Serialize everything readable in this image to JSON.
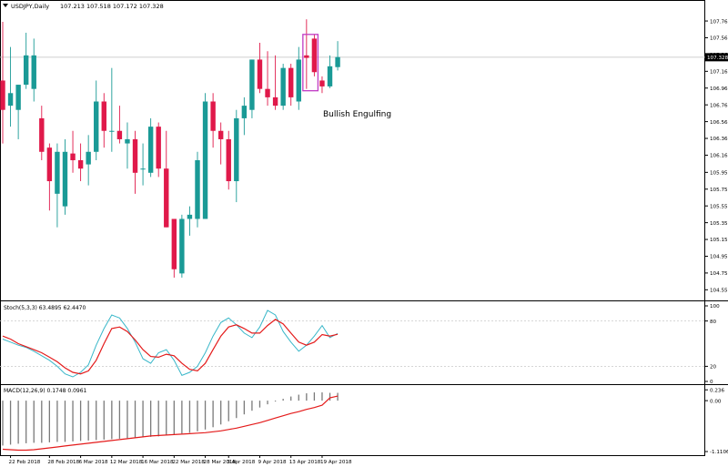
{
  "header": {
    "symbol_label": "USDJPY,Daily",
    "ohlc_label": "107.213 107.518 107.172 107.328"
  },
  "colors": {
    "bull": "#1a9a96",
    "bear": "#e0194a",
    "stoch_main": "#39b7c9",
    "stoch_signal": "#e41b1b",
    "macd_hist": "#7a7a7a",
    "macd_signal": "#e41b1b",
    "annotation_box": "#c13bc4",
    "price_line": "#bfbfbf",
    "current_price_bg": "#000000"
  },
  "annotation": {
    "label": "Bullish Engulfing",
    "start_index": 39,
    "end_index": 40
  },
  "current_price": {
    "value": 107.328,
    "label": "107.328"
  },
  "chart_data": [
    {
      "type": "candlestick",
      "name": "USDJPY,Daily",
      "ylim": [
        104.45,
        107.88
      ],
      "y_ticks": [
        107.76,
        107.56,
        107.36,
        107.16,
        106.96,
        106.76,
        106.56,
        106.36,
        106.16,
        105.955,
        105.755,
        105.555,
        105.355,
        105.155,
        104.955,
        104.755,
        104.555
      ],
      "y_tick_labels": [
        "107.760",
        "107.560",
        "107.360",
        "107.160",
        "106.960",
        "106.760",
        "106.560",
        "106.360",
        "106.160",
        "105.955",
        "105.755",
        "105.555",
        "105.355",
        "105.155",
        "104.955",
        "104.755",
        "104.555"
      ],
      "x_tick_labels": [
        {
          "index": 1,
          "label": "22 Feb 2018"
        },
        {
          "index": 6,
          "label": "28 Feb 2018"
        },
        {
          "index": 10,
          "label": "6 Mar 2018"
        },
        {
          "index": 14,
          "label": "12 Mar 2018"
        },
        {
          "index": 18,
          "label": "16 Mar 2018"
        },
        {
          "index": 22,
          "label": "22 Mar 2018"
        },
        {
          "index": 26,
          "label": "28 Mar 2018"
        },
        {
          "index": 29,
          "label": "3 Apr 2018"
        },
        {
          "index": 33,
          "label": "9 Apr 2018"
        },
        {
          "index": 37,
          "label": "13 Apr 2018"
        },
        {
          "index": 41,
          "label": "19 Apr 2018"
        }
      ],
      "ohlc": [
        [
          107.05,
          107.75,
          106.3,
          106.7
        ],
        [
          106.75,
          107.45,
          106.5,
          106.9
        ],
        [
          106.7,
          107.0,
          106.35,
          107.0
        ],
        [
          107.0,
          107.62,
          106.95,
          107.35
        ],
        [
          106.95,
          107.55,
          106.8,
          107.35
        ],
        [
          106.6,
          106.75,
          106.1,
          106.2
        ],
        [
          106.25,
          106.3,
          105.5,
          105.85
        ],
        [
          105.7,
          106.3,
          105.3,
          106.2
        ],
        [
          105.55,
          106.35,
          105.45,
          106.2
        ],
        [
          106.18,
          106.45,
          105.95,
          106.1
        ],
        [
          106.1,
          106.3,
          105.85,
          106.0
        ],
        [
          106.05,
          106.4,
          105.8,
          106.2
        ],
        [
          106.2,
          107.05,
          106.1,
          106.8
        ],
        [
          106.8,
          106.9,
          106.25,
          106.45
        ],
        [
          106.45,
          107.2,
          106.2,
          106.45
        ],
        [
          106.45,
          106.75,
          106.3,
          106.35
        ],
        [
          106.3,
          106.55,
          106.0,
          106.35
        ],
        [
          106.35,
          106.45,
          105.7,
          105.95
        ],
        [
          106.0,
          106.3,
          105.8,
          106.0
        ],
        [
          105.95,
          106.6,
          105.9,
          106.5
        ],
        [
          106.5,
          106.55,
          105.9,
          106.0
        ],
        [
          106.0,
          106.45,
          105.3,
          105.3
        ],
        [
          105.4,
          105.4,
          104.7,
          104.8
        ],
        [
          104.75,
          105.45,
          104.7,
          105.4
        ],
        [
          105.4,
          105.55,
          105.2,
          105.45
        ],
        [
          105.4,
          106.2,
          105.3,
          106.1
        ],
        [
          105.4,
          106.9,
          105.4,
          106.8
        ],
        [
          106.8,
          106.9,
          106.25,
          106.45
        ],
        [
          106.45,
          106.55,
          106.05,
          106.35
        ],
        [
          106.35,
          106.45,
          105.75,
          105.85
        ],
        [
          105.85,
          106.7,
          105.6,
          106.6
        ],
        [
          106.6,
          106.85,
          106.4,
          106.75
        ],
        [
          106.7,
          107.3,
          106.6,
          107.3
        ],
        [
          107.3,
          107.5,
          106.9,
          106.95
        ],
        [
          106.95,
          107.4,
          106.75,
          106.85
        ],
        [
          106.85,
          107.35,
          106.7,
          106.75
        ],
        [
          106.75,
          107.25,
          106.7,
          107.2
        ],
        [
          107.2,
          107.25,
          106.75,
          106.85
        ],
        [
          106.8,
          107.45,
          106.7,
          107.3
        ],
        [
          107.35,
          107.78,
          106.95,
          107.32
        ],
        [
          107.55,
          107.6,
          107.1,
          107.15
        ],
        [
          107.05,
          107.1,
          106.9,
          106.98
        ],
        [
          106.98,
          107.35,
          106.96,
          107.22
        ],
        [
          107.21,
          107.52,
          107.17,
          107.33
        ]
      ]
    },
    {
      "type": "line",
      "name": "Stoch(5,3,3) 63.4895 62.4470",
      "ylim": [
        0,
        100
      ],
      "y_ticks": [
        0,
        20,
        80,
        100
      ],
      "y_tick_labels": [
        "0",
        "20",
        "80",
        "100"
      ],
      "levels": [
        20,
        80
      ],
      "series": [
        {
          "values": [
            56,
            52,
            48,
            45,
            40,
            34,
            28,
            20,
            10,
            6,
            12,
            22,
            48,
            70,
            88,
            84,
            70,
            52,
            30,
            24,
            38,
            42,
            28,
            8,
            12,
            20,
            38,
            60,
            78,
            84,
            75,
            64,
            58,
            72,
            94,
            88,
            66,
            52,
            40,
            48,
            60,
            74,
            58,
            63.49
          ]
        },
        {
          "values": [
            60,
            56,
            50,
            46,
            42,
            38,
            32,
            26,
            18,
            12,
            10,
            14,
            28,
            50,
            70,
            72,
            66,
            55,
            42,
            33,
            32,
            36,
            34,
            24,
            16,
            14,
            24,
            42,
            60,
            72,
            75,
            70,
            64,
            64,
            74,
            82,
            76,
            64,
            52,
            48,
            52,
            62,
            60,
            62.45
          ]
        }
      ]
    },
    {
      "type": "bar",
      "name": "MACD(12,26,9) 0.1748 0.0961",
      "ylim": [
        -1.15,
        0.3
      ],
      "y_ticks": [
        0.236,
        0.0,
        -1.1106
      ],
      "y_tick_labels": [
        "0.236",
        "0.00",
        "-1.1106"
      ],
      "histogram": [
        -0.98,
        -0.96,
        -0.94,
        -0.93,
        -0.92,
        -0.92,
        -0.91,
        -0.9,
        -0.9,
        -0.89,
        -0.88,
        -0.87,
        -0.86,
        -0.85,
        -0.84,
        -0.83,
        -0.82,
        -0.81,
        -0.8,
        -0.79,
        -0.78,
        -0.76,
        -0.74,
        -0.72,
        -0.7,
        -0.67,
        -0.63,
        -0.58,
        -0.52,
        -0.45,
        -0.38,
        -0.3,
        -0.22,
        -0.15,
        -0.08,
        -0.02,
        0.04,
        0.09,
        0.13,
        0.16,
        0.18,
        0.18,
        0.17,
        0.17
      ],
      "signal": [
        -1.06,
        -1.07,
        -1.08,
        -1.08,
        -1.07,
        -1.05,
        -1.03,
        -1.01,
        -0.99,
        -0.97,
        -0.95,
        -0.93,
        -0.91,
        -0.89,
        -0.87,
        -0.85,
        -0.83,
        -0.81,
        -0.79,
        -0.77,
        -0.76,
        -0.75,
        -0.74,
        -0.73,
        -0.72,
        -0.71,
        -0.7,
        -0.68,
        -0.66,
        -0.63,
        -0.6,
        -0.56,
        -0.52,
        -0.48,
        -0.43,
        -0.38,
        -0.33,
        -0.28,
        -0.24,
        -0.19,
        -0.15,
        -0.1,
        0.06,
        0.1
      ]
    }
  ]
}
